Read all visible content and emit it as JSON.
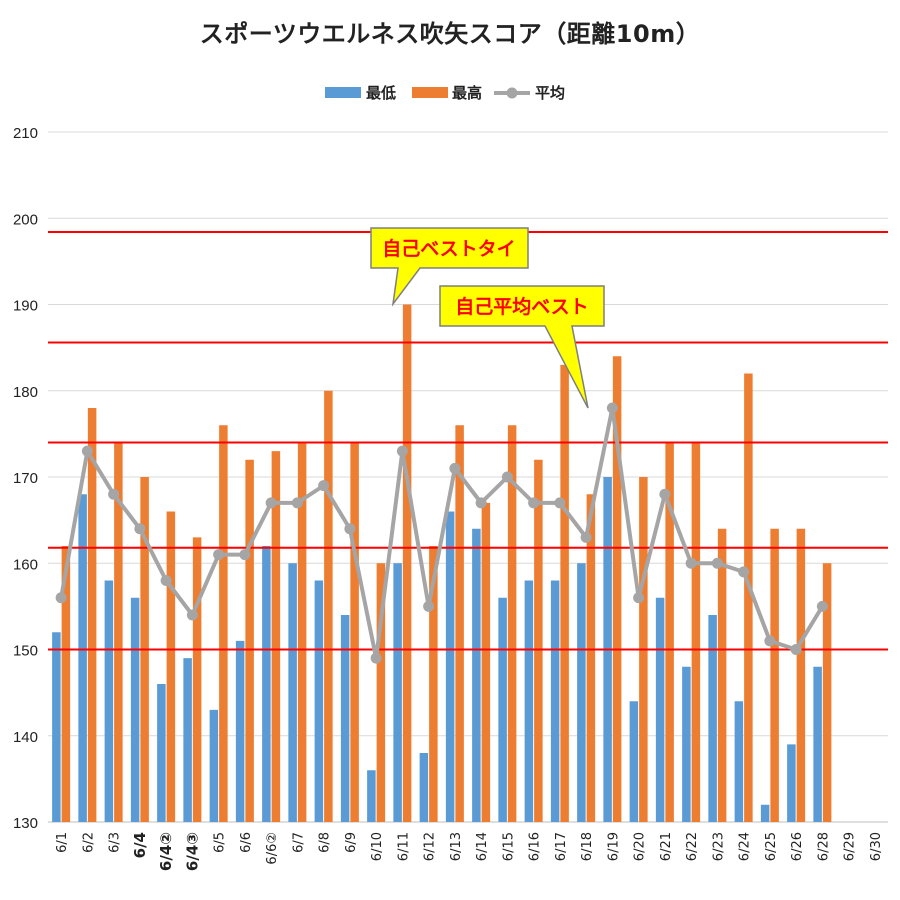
{
  "chart_data": {
    "type": "bar",
    "title": "スポーツウエルネス吹矢スコア（距離10m）",
    "categories": [
      "6/1",
      "6/2",
      "6/3",
      "6/4",
      "6/4②",
      "6/4③",
      "6/5",
      "6/6",
      "6/6②",
      "6/7",
      "6/8",
      "6/9",
      "6/10",
      "6/11",
      "6/12",
      "6/13",
      "6/14",
      "6/15",
      "6/16",
      "6/17",
      "6/18",
      "6/19",
      "6/20",
      "6/21",
      "6/22",
      "6/23",
      "6/24",
      "6/25",
      "6/26",
      "6/28",
      "6/29",
      "6/30"
    ],
    "bold_categories": [
      "6/4",
      "6/4②",
      "6/4③"
    ],
    "series": [
      {
        "name": "最低",
        "type": "bar",
        "color": "#5b9bd5",
        "values": [
          152,
          168,
          158,
          156,
          146,
          149,
          143,
          151,
          162,
          160,
          158,
          154,
          136,
          160,
          138,
          166,
          164,
          156,
          158,
          158,
          160,
          170,
          144,
          156,
          148,
          154,
          144,
          132,
          139,
          148,
          null,
          null
        ]
      },
      {
        "name": "最高",
        "type": "bar",
        "color": "#ed7d31",
        "values": [
          162,
          178,
          174,
          170,
          166,
          163,
          176,
          172,
          173,
          174,
          180,
          174,
          160,
          190,
          162,
          176,
          167,
          176,
          172,
          183,
          168,
          184,
          170,
          174,
          174,
          164,
          182,
          164,
          164,
          160,
          null,
          null
        ]
      },
      {
        "name": "平均",
        "type": "line",
        "color": "#a5a5a5",
        "values": [
          156,
          173,
          168,
          164,
          158,
          154,
          161,
          161,
          167,
          167,
          169,
          164,
          149,
          173,
          155,
          171,
          167,
          170,
          167,
          167,
          163,
          178,
          156,
          168,
          160,
          160,
          159,
          151,
          150,
          155,
          null,
          null
        ]
      }
    ],
    "ylim": [
      130,
      210
    ],
    "yticks": [
      130,
      140,
      150,
      160,
      170,
      180,
      190,
      200,
      210
    ],
    "grid": true,
    "legend_position": "top",
    "reference_lines": [
      198.4,
      185.6,
      174,
      161.8,
      150
    ],
    "reference_line_color": "#ff0000",
    "annotations": [
      {
        "text": "自己ベストタイ",
        "points_to": "6/11",
        "color": "#ff0000",
        "box_color": "#ffff00"
      },
      {
        "text": "自己平均ベスト",
        "points_to": "6/19",
        "color": "#ff0000",
        "box_color": "#ffff00"
      }
    ]
  }
}
